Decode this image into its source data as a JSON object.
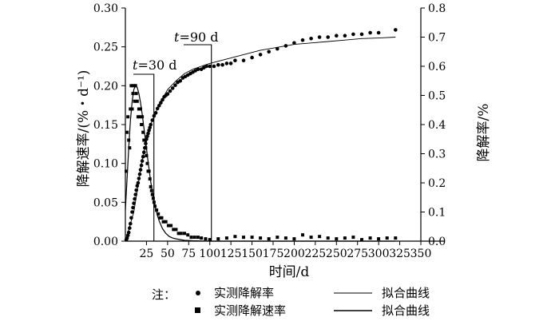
{
  "chart_data": {
    "type": "scatter",
    "xlabel": "时间/d",
    "ylabel_left": "降解速率/(%・d⁻¹)",
    "ylabel_right": "降解率/%",
    "xlim": [
      0,
      350
    ],
    "ylim_left": [
      0,
      0.3
    ],
    "ylim_right": [
      0,
      0.8
    ],
    "x_ticks": [
      "25",
      "50",
      "75",
      "100",
      "125",
      "150",
      "175",
      "200",
      "225",
      "250",
      "275",
      "300",
      "325",
      "350"
    ],
    "y_left_ticks": [
      "0.00",
      "0.05",
      "0.10",
      "0.15",
      "0.20",
      "0.25",
      "0.30"
    ],
    "y_right_ticks": [
      "0.0",
      "0.1",
      "0.2",
      "0.3",
      "0.4",
      "0.5",
      "0.6",
      "0.7",
      "0.8"
    ],
    "grid": false,
    "legend_placement": "bottom",
    "annotations": [
      {
        "text_t": "t",
        "text_rest": "=30 d",
        "x": 30
      },
      {
        "text_t": "t",
        "text_rest": "=90 d",
        "x": 100
      }
    ],
    "legend": {
      "note": "注：",
      "items": [
        {
          "marker": "circle",
          "label": "实测降解率",
          "fit_label": "拟合曲线"
        },
        {
          "marker": "square",
          "label": "实测降解速率",
          "fit_label": "拟合曲线"
        }
      ]
    },
    "series": [
      {
        "name": "实测降解率",
        "axis": "right",
        "marker": "circle",
        "x": [
          1,
          2,
          3,
          4,
          5,
          6,
          7,
          8,
          9,
          10,
          11,
          12,
          13,
          14,
          15,
          16,
          17,
          18,
          19,
          20,
          21,
          22,
          23,
          24,
          25,
          26,
          27,
          28,
          29,
          30,
          32,
          34,
          36,
          38,
          40,
          42,
          44,
          46,
          48,
          50,
          53,
          56,
          59,
          62,
          65,
          68,
          71,
          74,
          77,
          80,
          83,
          86,
          90,
          93,
          96,
          100,
          105,
          110,
          115,
          120,
          125,
          130,
          140,
          150,
          160,
          170,
          180,
          190,
          200,
          210,
          220,
          230,
          240,
          250,
          260,
          270,
          280,
          290,
          300,
          320
        ],
        "y": [
          0.005,
          0.01,
          0.02,
          0.03,
          0.045,
          0.06,
          0.08,
          0.1,
          0.115,
          0.13,
          0.145,
          0.16,
          0.175,
          0.19,
          0.2,
          0.215,
          0.23,
          0.245,
          0.26,
          0.275,
          0.29,
          0.305,
          0.32,
          0.335,
          0.35,
          0.36,
          0.37,
          0.38,
          0.39,
          0.4,
          0.415,
          0.43,
          0.44,
          0.455,
          0.465,
          0.475,
          0.485,
          0.495,
          0.5,
          0.505,
          0.515,
          0.525,
          0.535,
          0.545,
          0.55,
          0.56,
          0.565,
          0.57,
          0.575,
          0.58,
          0.585,
          0.59,
          0.59,
          0.595,
          0.6,
          0.6,
          0.6,
          0.605,
          0.605,
          0.61,
          0.61,
          0.62,
          0.62,
          0.63,
          0.64,
          0.65,
          0.66,
          0.67,
          0.68,
          0.69,
          0.695,
          0.7,
          0.7,
          0.705,
          0.705,
          0.71,
          0.71,
          0.715,
          0.715,
          0.725
        ]
      },
      {
        "name": "实测降解速率",
        "axis": "left",
        "marker": "square",
        "x": [
          1,
          2,
          3,
          4,
          5,
          6,
          7,
          8,
          9,
          10,
          11,
          12,
          13,
          14,
          15,
          16,
          17,
          18,
          19,
          20,
          21,
          22,
          23,
          24,
          25,
          26,
          27,
          28,
          29,
          30,
          31,
          32,
          33,
          34,
          35,
          37,
          39,
          41,
          43,
          45,
          48,
          51,
          54,
          57,
          60,
          63,
          66,
          70,
          74,
          78,
          82,
          86,
          90,
          95,
          100,
          110,
          120,
          130,
          140,
          150,
          160,
          170,
          180,
          190,
          200,
          210,
          220,
          230,
          240,
          250,
          260,
          270,
          280,
          290,
          300,
          310,
          320
        ],
        "y": [
          0.09,
          0.14,
          0.16,
          0.13,
          0.12,
          0.17,
          0.2,
          0.17,
          0.19,
          0.2,
          0.18,
          0.2,
          0.19,
          0.18,
          0.16,
          0.17,
          0.16,
          0.17,
          0.15,
          0.16,
          0.14,
          0.13,
          0.13,
          0.12,
          0.11,
          0.1,
          0.09,
          0.09,
          0.08,
          0.07,
          0.065,
          0.06,
          0.055,
          0.05,
          0.045,
          0.04,
          0.035,
          0.03,
          0.03,
          0.025,
          0.025,
          0.02,
          0.02,
          0.015,
          0.015,
          0.01,
          0.01,
          0.01,
          0.008,
          0.005,
          0.005,
          0.005,
          0.004,
          0.003,
          0.002,
          0.003,
          0.004,
          0.006,
          0.005,
          0.005,
          0.004,
          0.003,
          0.005,
          0.004,
          0.003,
          0.008,
          0.005,
          0.006,
          0.004,
          0.003,
          0.004,
          0.005,
          0.002,
          0.004,
          0.003,
          0.004,
          0.004
        ]
      },
      {
        "name": "拟合曲线",
        "axis": "right",
        "style": "thin-line",
        "x": [
          0,
          10,
          20,
          30,
          40,
          50,
          60,
          70,
          80,
          90,
          100,
          120,
          140,
          160,
          180,
          200,
          220,
          240,
          260,
          280,
          300,
          320
        ],
        "y": [
          0,
          0.1,
          0.28,
          0.4,
          0.47,
          0.52,
          0.55,
          0.575,
          0.59,
          0.6,
          0.61,
          0.625,
          0.64,
          0.655,
          0.665,
          0.675,
          0.68,
          0.685,
          0.69,
          0.695,
          0.697,
          0.7
        ]
      },
      {
        "name": "拟合曲线",
        "axis": "left",
        "style": "line",
        "x": [
          0,
          2,
          4,
          6,
          8,
          10,
          12,
          14,
          16,
          18,
          20,
          22,
          24,
          26,
          28,
          30,
          32,
          34,
          36,
          38,
          40,
          44,
          48,
          52,
          56,
          60,
          70,
          80,
          100,
          150,
          200,
          250,
          300,
          320
        ],
        "y": [
          0.04,
          0.08,
          0.12,
          0.155,
          0.18,
          0.195,
          0.2,
          0.198,
          0.19,
          0.178,
          0.163,
          0.145,
          0.128,
          0.11,
          0.093,
          0.077,
          0.063,
          0.051,
          0.041,
          0.033,
          0.026,
          0.016,
          0.01,
          0.006,
          0.004,
          0.003,
          0.001,
          0.0005,
          0,
          0,
          0,
          0,
          0,
          0
        ]
      }
    ]
  }
}
